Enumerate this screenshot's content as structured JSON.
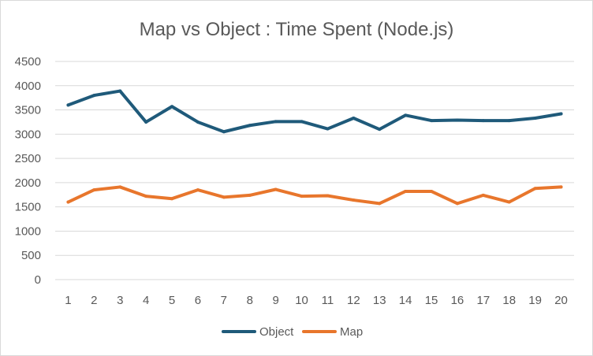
{
  "chart_data": {
    "type": "line",
    "title": "Map vs Object : Time Spent (Node.js)",
    "xlabel": "",
    "ylabel": "",
    "categories": [
      "1",
      "2",
      "3",
      "4",
      "5",
      "6",
      "7",
      "8",
      "9",
      "10",
      "11",
      "12",
      "13",
      "14",
      "15",
      "16",
      "17",
      "18",
      "19",
      "20"
    ],
    "ylim": [
      0,
      4500
    ],
    "yticks": [
      0,
      500,
      1000,
      1500,
      2000,
      2500,
      3000,
      3500,
      4000,
      4500
    ],
    "grid": true,
    "legend_position": "bottom",
    "series": [
      {
        "name": "Object",
        "color": "#1f5a7a",
        "values": [
          3600,
          3800,
          3890,
          3250,
          3570,
          3250,
          3050,
          3180,
          3260,
          3260,
          3110,
          3330,
          3100,
          3390,
          3280,
          3290,
          3280,
          3280,
          3330,
          3420
        ]
      },
      {
        "name": "Map",
        "color": "#e8762c",
        "values": [
          1600,
          1850,
          1910,
          1720,
          1670,
          1850,
          1700,
          1740,
          1860,
          1720,
          1730,
          1640,
          1570,
          1820,
          1820,
          1570,
          1740,
          1600,
          1880,
          1910
        ]
      }
    ]
  }
}
